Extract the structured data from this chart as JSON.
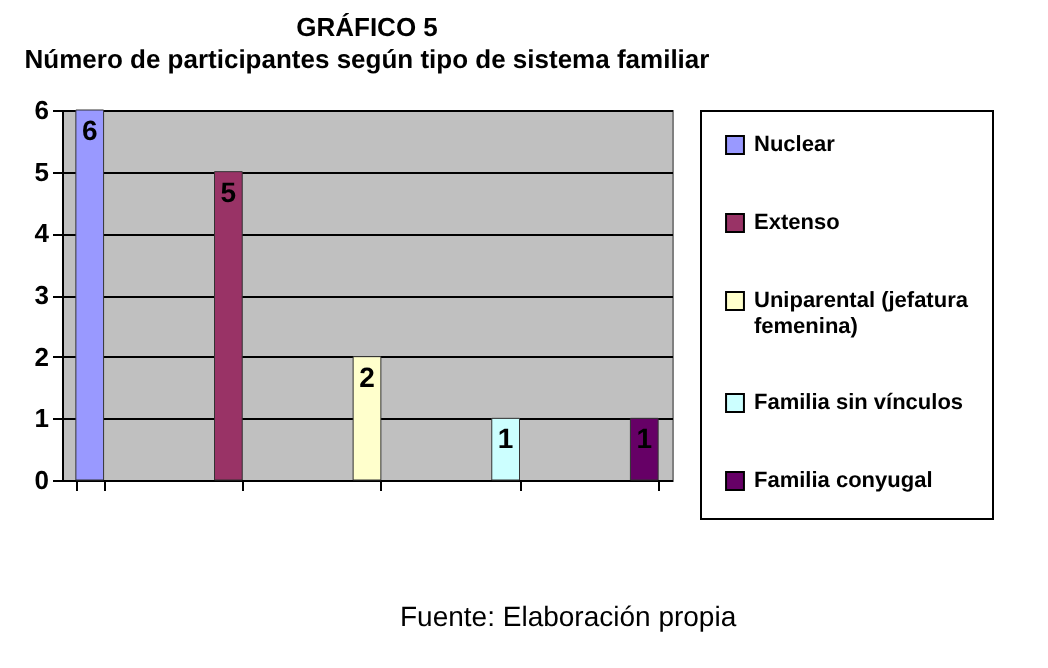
{
  "chart_data": {
    "type": "bar",
    "title": "GRÁFICO 5",
    "subtitle": "Número de participantes según tipo de sistema familiar",
    "categories": [
      null,
      null,
      null,
      null,
      null
    ],
    "series": [
      {
        "name": "Nuclear",
        "color": "#9999ff",
        "values": [
          6,
          null,
          null,
          null,
          null
        ]
      },
      {
        "name": "Extenso",
        "color": "#993366",
        "values": [
          null,
          5,
          null,
          null,
          null
        ]
      },
      {
        "name": "Uniparental (jefatura femenina)",
        "color": "#ffffcc",
        "values": [
          null,
          null,
          2,
          null,
          null
        ]
      },
      {
        "name": "Familia sin vínculos",
        "color": "#ccffff",
        "values": [
          null,
          null,
          null,
          1,
          null
        ]
      },
      {
        "name": "Familia conyugal",
        "color": "#660066",
        "values": [
          null,
          null,
          null,
          null,
          1
        ]
      }
    ],
    "ylim": [
      0,
      6
    ],
    "yticks": [
      0,
      1,
      2,
      3,
      4,
      5,
      6
    ],
    "grid": "y",
    "legend": "right",
    "tick_labels": "y",
    "data_labels": true,
    "annotations": [
      "Fuente: Elaboración propia"
    ]
  }
}
